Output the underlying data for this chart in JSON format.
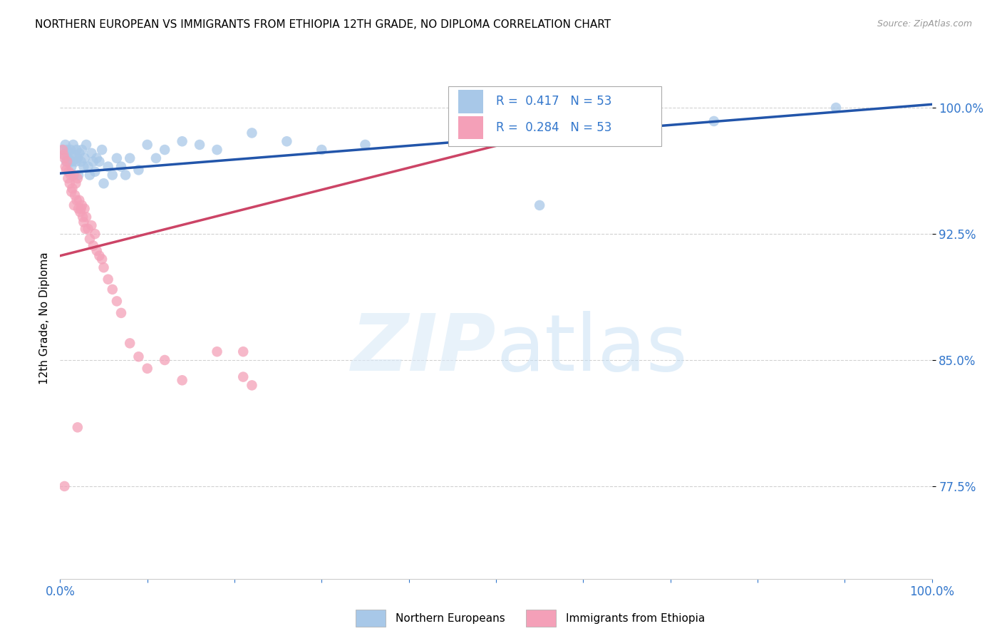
{
  "title": "NORTHERN EUROPEAN VS IMMIGRANTS FROM ETHIOPIA 12TH GRADE, NO DIPLOMA CORRELATION CHART",
  "source": "Source: ZipAtlas.com",
  "ylabel": "12th Grade, No Diploma",
  "R_blue": 0.417,
  "N_blue": 53,
  "R_pink": 0.284,
  "N_pink": 53,
  "blue_color": "#a8c8e8",
  "pink_color": "#f4a0b8",
  "trend_blue_color": "#2255aa",
  "trend_pink_color": "#cc4466",
  "legend_label_blue": "Northern Europeans",
  "legend_label_pink": "Immigrants from Ethiopia",
  "xlim": [
    0.0,
    1.0
  ],
  "ylim": [
    0.72,
    1.03
  ],
  "blue_trend_x0": 0.0,
  "blue_trend_y0": 0.961,
  "blue_trend_x1": 1.0,
  "blue_trend_y1": 1.002,
  "pink_trend_x0": 0.0,
  "pink_trend_y0": 0.912,
  "pink_trend_x1": 0.52,
  "pink_trend_y1": 0.98,
  "blue_x": [
    0.003,
    0.005,
    0.006,
    0.007,
    0.008,
    0.009,
    0.01,
    0.011,
    0.012,
    0.013,
    0.014,
    0.015,
    0.016,
    0.017,
    0.018,
    0.019,
    0.02,
    0.021,
    0.022,
    0.024,
    0.025,
    0.027,
    0.028,
    0.03,
    0.032,
    0.034,
    0.036,
    0.038,
    0.04,
    0.042,
    0.045,
    0.048,
    0.05,
    0.055,
    0.06,
    0.065,
    0.07,
    0.075,
    0.08,
    0.09,
    0.1,
    0.11,
    0.12,
    0.14,
    0.16,
    0.18,
    0.22,
    0.26,
    0.3,
    0.35,
    0.55,
    0.75,
    0.89
  ],
  "blue_y": [
    0.975,
    0.972,
    0.978,
    0.968,
    0.975,
    0.97,
    0.973,
    0.968,
    0.975,
    0.965,
    0.968,
    0.978,
    0.96,
    0.972,
    0.968,
    0.975,
    0.97,
    0.96,
    0.973,
    0.968,
    0.975,
    0.965,
    0.97,
    0.978,
    0.965,
    0.96,
    0.973,
    0.968,
    0.962,
    0.97,
    0.968,
    0.975,
    0.955,
    0.965,
    0.96,
    0.97,
    0.965,
    0.96,
    0.97,
    0.963,
    0.978,
    0.97,
    0.975,
    0.98,
    0.978,
    0.975,
    0.985,
    0.98,
    0.975,
    0.978,
    0.942,
    0.992,
    1.0
  ],
  "pink_x": [
    0.003,
    0.005,
    0.006,
    0.007,
    0.008,
    0.009,
    0.01,
    0.011,
    0.012,
    0.013,
    0.014,
    0.015,
    0.016,
    0.017,
    0.018,
    0.019,
    0.02,
    0.021,
    0.022,
    0.024,
    0.025,
    0.027,
    0.028,
    0.03,
    0.032,
    0.034,
    0.036,
    0.038,
    0.04,
    0.043,
    0.046,
    0.05,
    0.055,
    0.06,
    0.065,
    0.07,
    0.08,
    0.09,
    0.1,
    0.12,
    0.14,
    0.16,
    0.19,
    0.22,
    0.015,
    0.02,
    0.025,
    0.03,
    0.035,
    0.04,
    0.045,
    0.05,
    0.21
  ],
  "pink_y": [
    0.975,
    0.97,
    0.965,
    0.96,
    0.968,
    0.955,
    0.96,
    0.952,
    0.96,
    0.945,
    0.95,
    0.962,
    0.94,
    0.945,
    0.955,
    0.948,
    0.958,
    0.94,
    0.945,
    0.938,
    0.942,
    0.935,
    0.94,
    0.935,
    0.932,
    0.928,
    0.93,
    0.92,
    0.925,
    0.918,
    0.915,
    0.912,
    0.908,
    0.9,
    0.895,
    0.888,
    0.87,
    0.86,
    0.85,
    0.855,
    0.84,
    0.855,
    0.845,
    0.838,
    0.882,
    0.878,
    0.872,
    0.862,
    0.87,
    0.855,
    0.858,
    0.84,
    0.84
  ]
}
